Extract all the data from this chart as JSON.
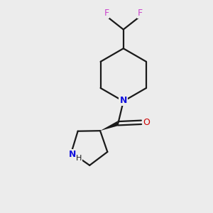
{
  "background_color": "#ececec",
  "bond_color": "#1a1a1a",
  "N_color": "#1010dd",
  "O_color": "#cc0000",
  "F_color": "#cc44cc",
  "figsize": [
    3.0,
    3.0
  ],
  "dpi": 100,
  "xlim": [
    0,
    10
  ],
  "ylim": [
    0,
    10
  ]
}
